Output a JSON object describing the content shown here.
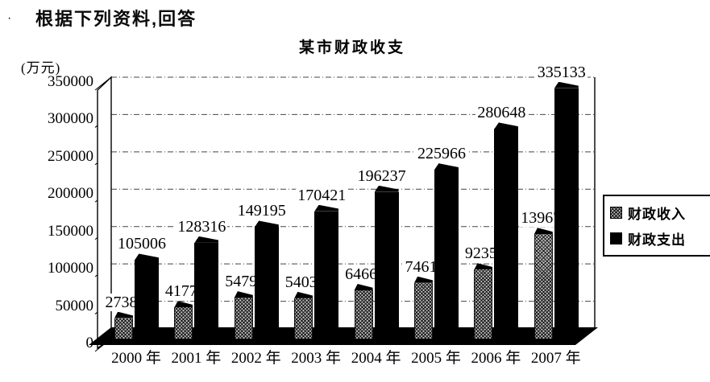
{
  "page": {
    "bullet": "·",
    "heading": "根据下列资料,回答"
  },
  "chart_data": {
    "type": "bar",
    "title": "某市财政收支",
    "unit_label": "(万元)",
    "categories": [
      "2000 年",
      "2001 年",
      "2002 年",
      "2003 年",
      "2004 年",
      "2005 年",
      "2006 年",
      "2007 年"
    ],
    "series": [
      {
        "name": "财政收入",
        "style": "hatched",
        "values": [
          27380,
          41772,
          54792,
          54036,
          64665,
          74614,
          92353,
          139676
        ]
      },
      {
        "name": "财政支出",
        "style": "solid-black",
        "values": [
          105006,
          128316,
          149195,
          170421,
          196237,
          225966,
          280648,
          335133
        ]
      }
    ],
    "ylim": [
      0,
      350000
    ],
    "ytick_step": 50000,
    "yticks": [
      0,
      50000,
      100000,
      150000,
      200000,
      250000,
      300000,
      350000
    ],
    "grid": "dashed-horizontal",
    "legend_position": "right",
    "effect": "3d-perspective",
    "colors": {
      "ink": "#000000",
      "hatch_fill": "#c0c0c0",
      "background": "#ffffff"
    }
  }
}
